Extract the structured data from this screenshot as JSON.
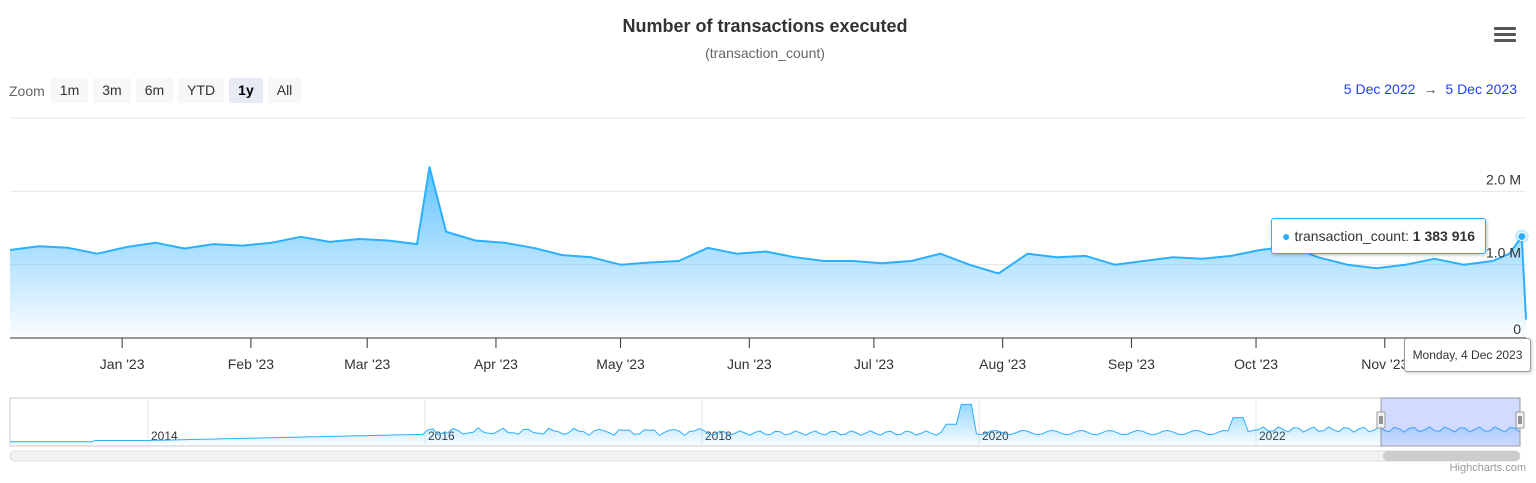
{
  "chart_data": {
    "type": "area",
    "title": "Number of transactions executed",
    "subtitle": "(transaction_count)",
    "series": [
      {
        "name": "transaction_count"
      }
    ],
    "y_axis": {
      "ticks": [
        "0",
        "1.0 M",
        "2.0 M"
      ],
      "tick_values": [
        0,
        1000000,
        2000000
      ],
      "range": [
        0,
        3000000
      ]
    },
    "x_axis": {
      "ticks": [
        "Jan '23",
        "Feb '23",
        "Mar '23",
        "Apr '23",
        "May '23",
        "Jun '23",
        "Jul '23",
        "Aug '23",
        "Sep '23",
        "Oct '23",
        "Nov '23"
      ],
      "range": [
        "2022-12-05",
        "2023-12-05"
      ]
    },
    "points": [
      [
        "2022-12-05",
        1200000
      ],
      [
        "2022-12-12",
        1250000
      ],
      [
        "2022-12-19",
        1230000
      ],
      [
        "2022-12-26",
        1150000
      ],
      [
        "2023-01-02",
        1240000
      ],
      [
        "2023-01-09",
        1300000
      ],
      [
        "2023-01-16",
        1220000
      ],
      [
        "2023-01-23",
        1280000
      ],
      [
        "2023-01-30",
        1260000
      ],
      [
        "2023-02-06",
        1300000
      ],
      [
        "2023-02-13",
        1380000
      ],
      [
        "2023-02-20",
        1310000
      ],
      [
        "2023-02-27",
        1350000
      ],
      [
        "2023-03-06",
        1330000
      ],
      [
        "2023-03-13",
        1280000
      ],
      [
        "2023-03-16",
        2330000
      ],
      [
        "2023-03-20",
        1450000
      ],
      [
        "2023-03-27",
        1330000
      ],
      [
        "2023-04-03",
        1300000
      ],
      [
        "2023-04-10",
        1230000
      ],
      [
        "2023-04-17",
        1130000
      ],
      [
        "2023-04-24",
        1100000
      ],
      [
        "2023-05-01",
        1000000
      ],
      [
        "2023-05-08",
        1030000
      ],
      [
        "2023-05-15",
        1050000
      ],
      [
        "2023-05-22",
        1230000
      ],
      [
        "2023-05-29",
        1150000
      ],
      [
        "2023-06-05",
        1180000
      ],
      [
        "2023-06-12",
        1100000
      ],
      [
        "2023-06-19",
        1050000
      ],
      [
        "2023-06-26",
        1050000
      ],
      [
        "2023-07-03",
        1020000
      ],
      [
        "2023-07-10",
        1050000
      ],
      [
        "2023-07-17",
        1150000
      ],
      [
        "2023-07-24",
        1000000
      ],
      [
        "2023-07-31",
        880000
      ],
      [
        "2023-08-07",
        1150000
      ],
      [
        "2023-08-14",
        1100000
      ],
      [
        "2023-08-21",
        1120000
      ],
      [
        "2023-08-28",
        1000000
      ],
      [
        "2023-09-04",
        1050000
      ],
      [
        "2023-09-11",
        1100000
      ],
      [
        "2023-09-18",
        1080000
      ],
      [
        "2023-09-25",
        1120000
      ],
      [
        "2023-10-02",
        1200000
      ],
      [
        "2023-10-09",
        1250000
      ],
      [
        "2023-10-16",
        1100000
      ],
      [
        "2023-10-23",
        1000000
      ],
      [
        "2023-10-30",
        950000
      ],
      [
        "2023-11-06",
        1000000
      ],
      [
        "2023-11-13",
        1080000
      ],
      [
        "2023-11-20",
        1000000
      ],
      [
        "2023-11-27",
        1050000
      ],
      [
        "2023-12-01",
        1150000
      ],
      [
        "2023-12-04",
        1383916
      ],
      [
        "2023-12-05",
        250000
      ]
    ],
    "navigator": {
      "ticks": [
        "2014",
        "2016",
        "2018",
        "2020",
        "2022"
      ],
      "selected_range": [
        "2022-12-05",
        "2023-12-05"
      ]
    },
    "tooltip": {
      "series": "transaction_count",
      "value_text": "1 383 916",
      "date_text": "Monday, 4 Dec 2023"
    }
  },
  "toolbar": {
    "zoom_label": "Zoom",
    "zoom_buttons": [
      "1m",
      "3m",
      "6m",
      "YTD",
      "1y",
      "All"
    ],
    "active_zoom": "1y",
    "range_from": "5 Dec 2022",
    "range_arrow": "→",
    "range_to": "5 Dec 2023"
  },
  "menu_icon": "hamburger-menu-icon",
  "credit": "Highcharts.com",
  "colors": {
    "series": "#2caffe",
    "navigator_mask": "#c8cffa",
    "active_zoom": "#e6ebf5"
  }
}
